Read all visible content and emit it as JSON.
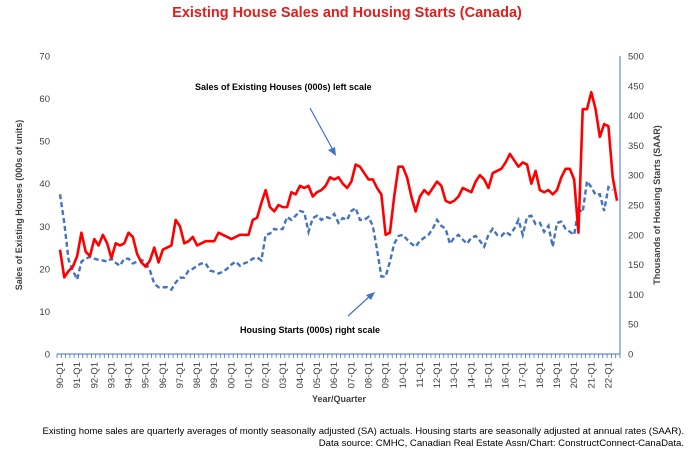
{
  "title": "Existing House Sales and Housing Starts (Canada)",
  "footnote_line1": "Existing home sales are quarterly averages of montly seasonally adjusted (SA) actuals. Housing starts are seasonally adjusted at annual rates (SAAR).",
  "footnote_line2": "Data source: CMHC, Canadian Real Estate Assn/Chart: ConstructConnect-CanaData.",
  "colors": {
    "sales": "#ff0000",
    "starts": "#4472c4",
    "axis": "#4472c4"
  },
  "chart_data": {
    "type": "line",
    "xlabel": "Year/Quarter",
    "ylabel_left": "Sales of Existing Houses (000s of units)",
    "ylabel_right": "Thousands of Housing Starts (SAAR)",
    "ylim_left": [
      0,
      70
    ],
    "ylim_right": [
      0,
      500
    ],
    "yticks_left": [
      0,
      10,
      20,
      30,
      40,
      50,
      60,
      70
    ],
    "yticks_right": [
      0,
      50,
      100,
      150,
      200,
      250,
      300,
      350,
      400,
      450,
      500
    ],
    "x_tick_labels": [
      "90-Q1",
      "91-Q1",
      "92-Q1",
      "93-Q1",
      "94-Q1",
      "95-Q1",
      "96-Q1",
      "97-Q1",
      "98-Q1",
      "99-Q1",
      "00-Q1",
      "01-Q1",
      "02-Q1",
      "03-Q1",
      "04-Q1",
      "05-Q1",
      "06-Q1",
      "07-Q1",
      "08-Q1",
      "09-Q1",
      "10-Q1",
      "11-Q1",
      "12-Q1",
      "13-Q1",
      "14-Q1",
      "15-Q1",
      "16-Q1",
      "17-Q1",
      "18-Q1",
      "19-Q1",
      "20-Q1",
      "21-Q1",
      "22-Q1"
    ],
    "annotations": [
      {
        "text": "Sales of Existing Houses (000s) left scale"
      },
      {
        "text": "Housing Starts (000s) right scale"
      }
    ],
    "series": [
      {
        "name": "Sales of Existing Houses (000s)",
        "axis": "left",
        "style": "solid",
        "values": [
          24.5,
          18.0,
          19.5,
          20.5,
          23.0,
          28.5,
          24.0,
          23.0,
          27.0,
          25.5,
          28.0,
          26.0,
          22.5,
          26.0,
          25.5,
          26.0,
          28.5,
          27.5,
          23.5,
          21.5,
          20.5,
          22.0,
          25.0,
          21.5,
          24.5,
          25.0,
          25.5,
          31.5,
          30.0,
          26.0,
          26.5,
          27.5,
          25.5,
          26.0,
          26.5,
          26.5,
          26.5,
          28.5,
          28.0,
          27.5,
          27.0,
          27.5,
          28.0,
          28.0,
          28.0,
          31.5,
          32.0,
          35.5,
          38.5,
          34.5,
          33.5,
          35.0,
          34.5,
          34.5,
          38.0,
          37.5,
          39.5,
          39.0,
          39.5,
          37.0,
          38.0,
          38.5,
          39.5,
          41.5,
          41.0,
          41.5,
          40.0,
          39.0,
          40.5,
          44.5,
          44.0,
          42.5,
          41.0,
          41.0,
          39.0,
          37.5,
          28.0,
          28.5,
          37.0,
          44.0,
          44.0,
          41.5,
          37.0,
          33.5,
          37.0,
          38.5,
          37.5,
          39.0,
          40.5,
          39.5,
          36.0,
          35.5,
          36.0,
          37.0,
          39.0,
          38.5,
          38.0,
          40.5,
          42.0,
          41.0,
          39.0,
          42.5,
          43.0,
          43.5,
          45.0,
          47.0,
          45.5,
          44.0,
          45.0,
          44.5,
          40.0,
          43.0,
          38.5,
          38.0,
          38.5,
          37.5,
          38.5,
          41.5,
          43.5,
          43.5,
          41.0,
          28.5,
          57.5,
          57.5,
          61.5,
          57.5,
          51.0,
          54.0,
          53.5,
          41.5,
          36.0
        ]
      },
      {
        "name": "Housing Starts (000s)",
        "axis": "right",
        "style": "dashed",
        "values": [
          268,
          220,
          158,
          140,
          125,
          155,
          160,
          163,
          160,
          158,
          157,
          155,
          160,
          153,
          148,
          160,
          160,
          152,
          155,
          158,
          153,
          140,
          118,
          112,
          112,
          112,
          108,
          120,
          128,
          128,
          140,
          143,
          148,
          152,
          152,
          140,
          138,
          135,
          138,
          143,
          150,
          155,
          148,
          152,
          155,
          160,
          162,
          157,
          200,
          202,
          210,
          208,
          210,
          230,
          225,
          232,
          240,
          238,
          205,
          228,
          232,
          225,
          230,
          228,
          235,
          220,
          228,
          225,
          240,
          245,
          225,
          225,
          230,
          215,
          175,
          130,
          130,
          155,
          185,
          198,
          200,
          192,
          185,
          180,
          190,
          195,
          200,
          210,
          225,
          215,
          210,
          185,
          195,
          200,
          192,
          185,
          195,
          198,
          190,
          180,
          200,
          210,
          200,
          198,
          205,
          200,
          210,
          225,
          200,
          230,
          232,
          218,
          220,
          205,
          215,
          180,
          220,
          222,
          210,
          205,
          200,
          243,
          238,
          290,
          280,
          267,
          268,
          240,
          280,
          275
        ]
      }
    ]
  }
}
